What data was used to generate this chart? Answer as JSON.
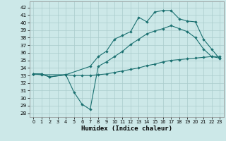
{
  "xlabel": "Humidex (Indice chaleur)",
  "bg_color": "#cce8e8",
  "grid_color": "#aacccc",
  "line_color": "#1a7070",
  "xlim": [
    -0.5,
    23.5
  ],
  "ylim": [
    27.5,
    42.8
  ],
  "yticks": [
    28,
    29,
    30,
    31,
    32,
    33,
    34,
    35,
    36,
    37,
    38,
    39,
    40,
    41,
    42
  ],
  "xticks": [
    0,
    1,
    2,
    3,
    4,
    5,
    6,
    7,
    8,
    9,
    10,
    11,
    12,
    13,
    14,
    15,
    16,
    17,
    18,
    19,
    20,
    21,
    22,
    23
  ],
  "line1_x": [
    0,
    1,
    2,
    4,
    7,
    8,
    9,
    10,
    11,
    12,
    13,
    14,
    15,
    16,
    17,
    18,
    19,
    20,
    21,
    22,
    23
  ],
  "line1_y": [
    33.2,
    33.2,
    32.8,
    33.1,
    34.2,
    35.5,
    36.2,
    37.8,
    38.3,
    38.8,
    40.7,
    40.1,
    41.4,
    41.6,
    41.6,
    40.5,
    40.2,
    40.1,
    37.8,
    36.5,
    35.2
  ],
  "line2_x": [
    0,
    1,
    2,
    4,
    5,
    6,
    7,
    8,
    9,
    10,
    11,
    12,
    13,
    14,
    15,
    16,
    17,
    18,
    19,
    20,
    21,
    22,
    23
  ],
  "line2_y": [
    33.2,
    33.2,
    32.8,
    33.1,
    30.8,
    29.2,
    28.5,
    34.2,
    34.8,
    35.5,
    36.2,
    37.1,
    37.8,
    38.5,
    38.9,
    39.2,
    39.6,
    39.2,
    38.8,
    38.0,
    36.5,
    35.5,
    35.3
  ],
  "line3_x": [
    0,
    1,
    4,
    5,
    6,
    7,
    8,
    9,
    10,
    11,
    12,
    13,
    14,
    15,
    16,
    17,
    18,
    19,
    20,
    21,
    22,
    23
  ],
  "line3_y": [
    33.2,
    33.1,
    33.1,
    33.0,
    33.0,
    33.0,
    33.1,
    33.2,
    33.4,
    33.6,
    33.8,
    34.0,
    34.3,
    34.5,
    34.8,
    35.0,
    35.1,
    35.2,
    35.3,
    35.4,
    35.5,
    35.5
  ],
  "marker1_x": [
    0,
    1,
    2,
    4,
    7,
    8,
    9,
    10,
    11,
    12,
    13,
    14,
    15,
    16,
    17,
    18,
    19,
    20,
    21,
    22,
    23
  ],
  "marker1_y": [
    33.2,
    33.2,
    32.8,
    33.1,
    34.2,
    35.5,
    36.2,
    37.8,
    38.3,
    38.8,
    40.7,
    40.1,
    41.4,
    41.6,
    41.6,
    40.5,
    40.2,
    40.1,
    37.8,
    36.5,
    35.2
  ],
  "marker2_x": [
    0,
    1,
    2,
    4,
    5,
    6,
    7,
    8,
    9,
    10,
    11,
    12,
    13,
    14,
    15,
    16,
    17,
    18,
    19,
    20,
    21,
    22,
    23
  ],
  "marker2_y": [
    33.2,
    33.2,
    32.8,
    33.1,
    30.8,
    29.2,
    28.5,
    34.2,
    34.8,
    35.5,
    36.2,
    37.1,
    37.8,
    38.5,
    38.9,
    39.2,
    39.6,
    39.2,
    38.8,
    38.0,
    36.5,
    35.5,
    35.3
  ],
  "marker3_x": [
    0,
    1,
    4,
    5,
    6,
    7,
    8,
    9,
    10,
    11,
    12,
    13,
    14,
    15,
    16,
    17,
    18,
    19,
    20,
    21,
    22,
    23
  ],
  "marker3_y": [
    33.2,
    33.1,
    33.1,
    33.0,
    33.0,
    33.0,
    33.1,
    33.2,
    33.4,
    33.6,
    33.8,
    34.0,
    34.3,
    34.5,
    34.8,
    35.0,
    35.1,
    35.2,
    35.3,
    35.4,
    35.5,
    35.5
  ]
}
